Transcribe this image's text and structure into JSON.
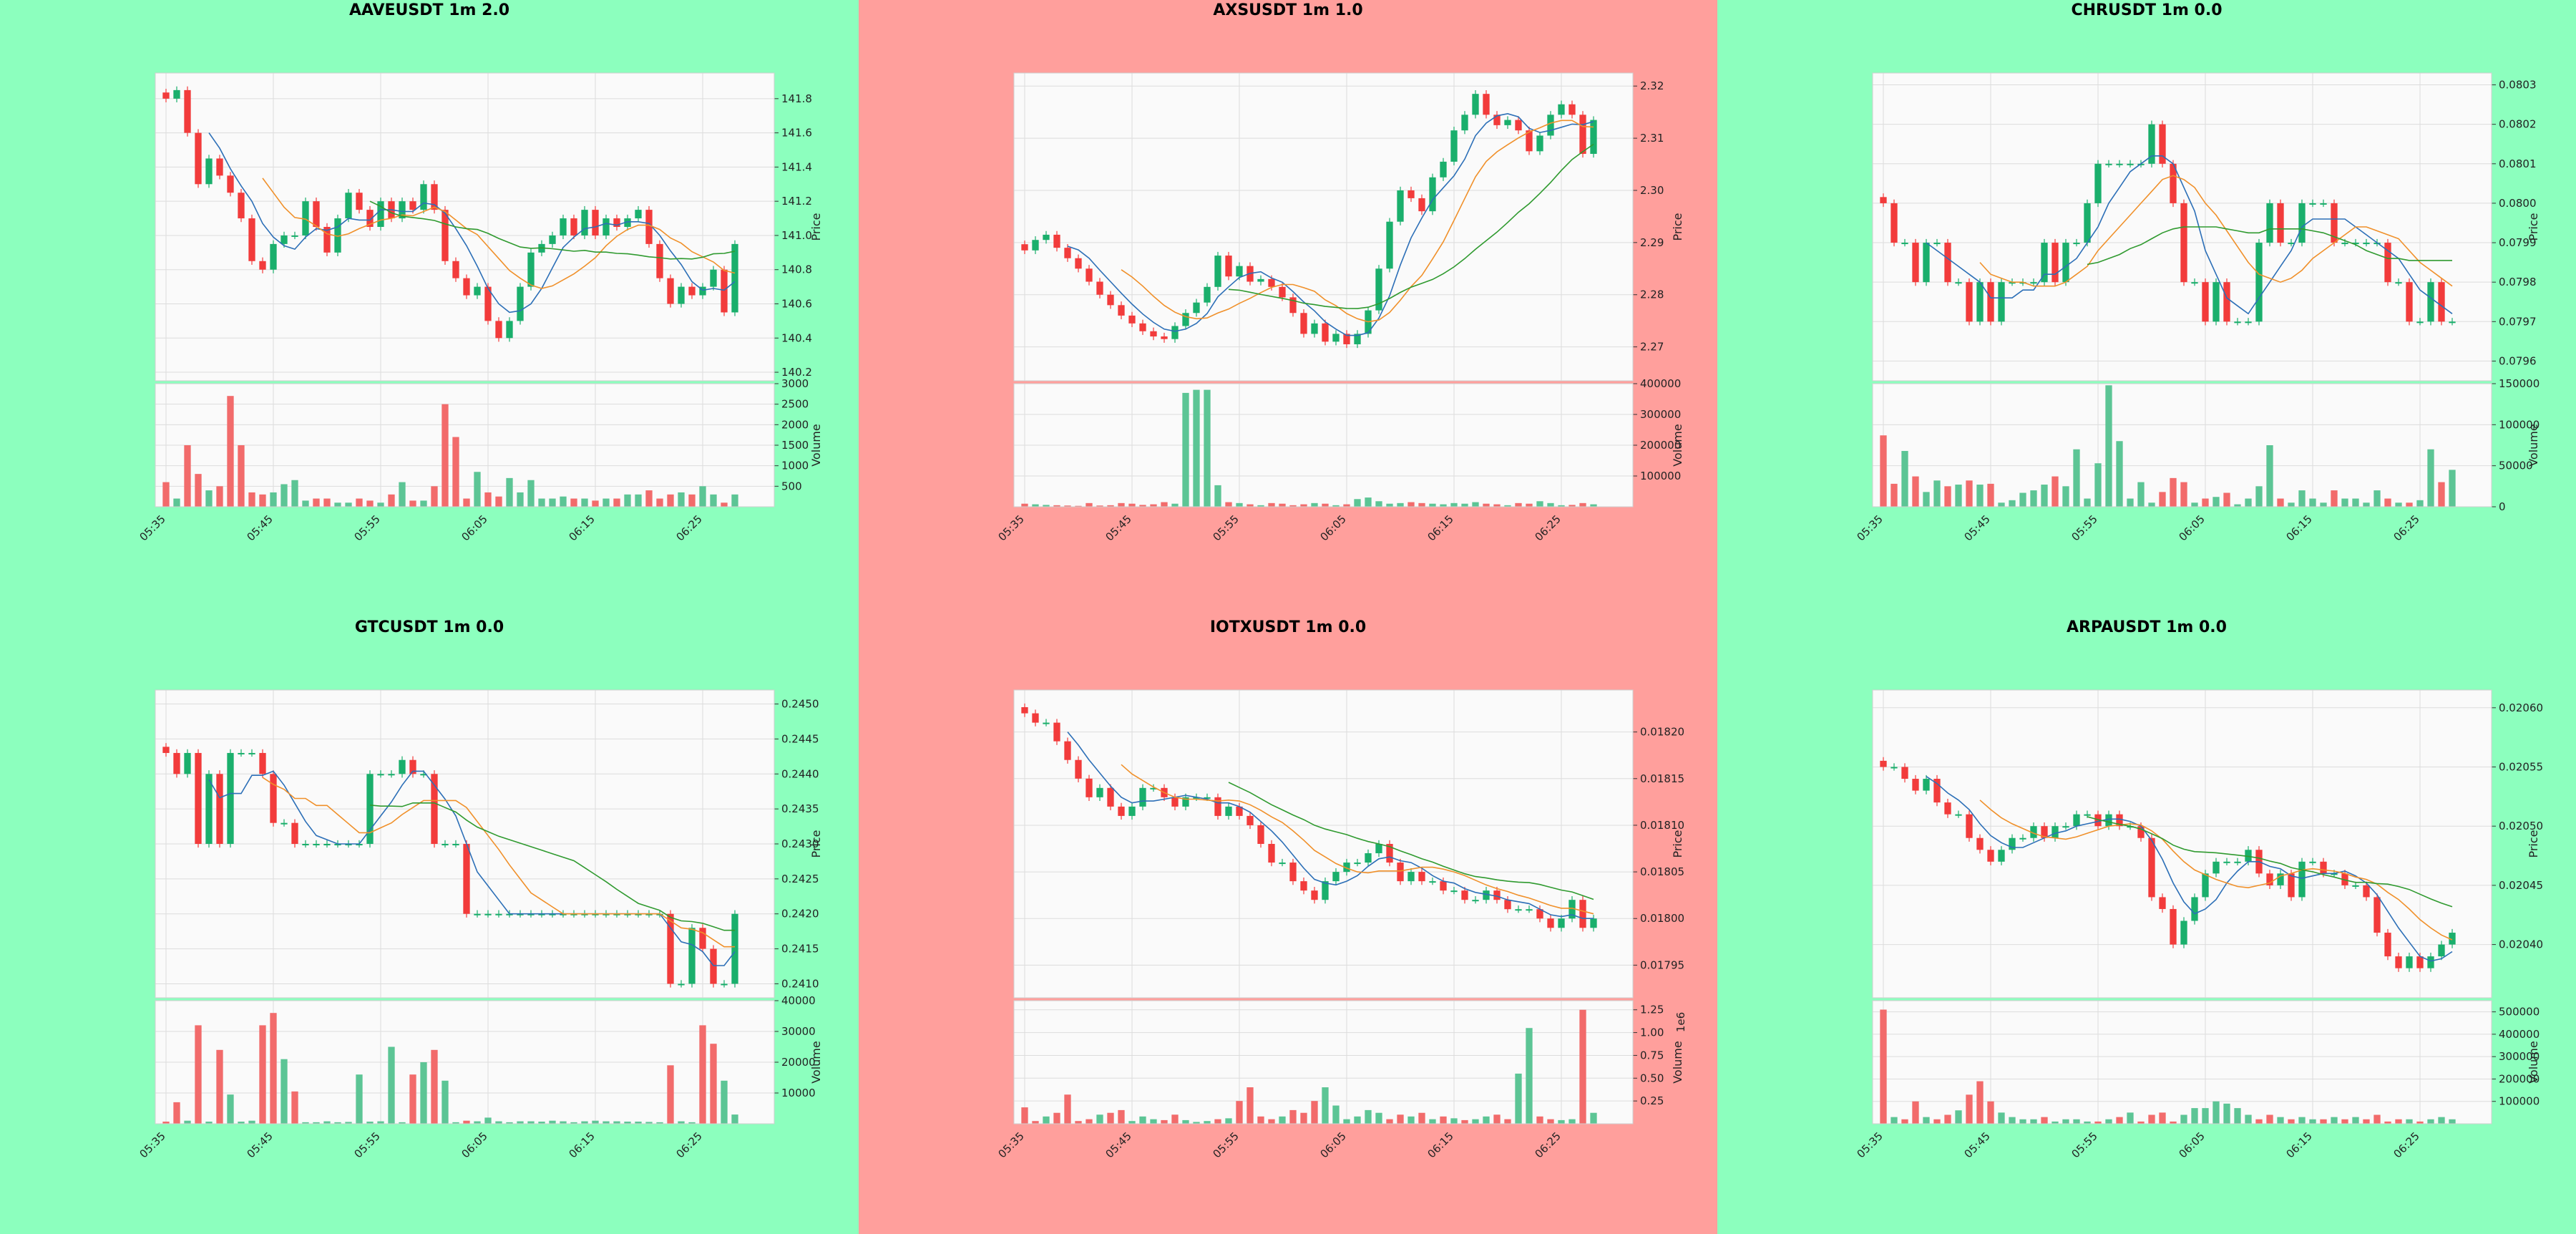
{
  "colors": {
    "panel_up": "#8cffbe",
    "panel_down": "#ff9f9c",
    "candle_up": "#1aaf6c",
    "candle_down": "#f23b3b",
    "vol_up": "#5cc595",
    "vol_down": "#f26b6b",
    "ma1": "#2c6fb7",
    "ma2": "#f0902a",
    "ma3": "#2f9a2f",
    "plot_bg": "#fafafa"
  },
  "times": [
    "05:35",
    "05:45",
    "05:55",
    "06:05",
    "06:15",
    "06:25"
  ],
  "ylabel_price": "Price",
  "ylabel_volume": "Volume",
  "charts": [
    {
      "title": "AAVEUSDT 1m 2.0",
      "status": "up",
      "chart_data": {
        "type": "candlestick",
        "x_ticks": [
          "05:35",
          "05:45",
          "05:55",
          "06:05",
          "06:15",
          "06:25"
        ],
        "price_ticks": [
          "140.2",
          "140.4",
          "140.6",
          "140.8",
          "141.0",
          "141.2",
          "141.4",
          "141.6",
          "141.8"
        ],
        "price_ylim": [
          140.15,
          141.95
        ],
        "volume_ticks": [
          "500",
          "1000",
          "1500",
          "2000",
          "2500",
          "3000"
        ],
        "volume_ylim": [
          0,
          3000
        ],
        "close": [
          141.8,
          141.85,
          141.6,
          141.3,
          141.45,
          141.35,
          141.25,
          141.1,
          140.85,
          140.8,
          140.95,
          141.0,
          141.0,
          141.2,
          141.05,
          140.9,
          141.1,
          141.25,
          141.15,
          141.05,
          141.2,
          141.1,
          141.2,
          141.15,
          141.3,
          141.15,
          140.85,
          140.75,
          140.65,
          140.7,
          140.5,
          140.4,
          140.5,
          140.7,
          140.9,
          140.95,
          141.0,
          141.1,
          141.0,
          141.15,
          141.0,
          141.1,
          141.05,
          141.1,
          141.15,
          140.95,
          140.75,
          140.6,
          140.7,
          140.65,
          140.7,
          140.8,
          140.55,
          140.95
        ],
        "volume": [
          600,
          200,
          1500,
          800,
          400,
          500,
          2700,
          1500,
          350,
          300,
          350,
          550,
          650,
          150,
          200,
          200,
          100,
          100,
          200,
          150,
          100,
          300,
          600,
          150,
          150,
          500,
          2500,
          1700,
          200,
          850,
          350,
          250,
          700,
          350,
          650,
          200,
          200,
          250,
          200,
          200,
          150,
          200,
          200,
          300,
          300,
          400,
          200,
          300,
          350,
          300,
          500,
          300,
          100,
          300
        ]
      }
    },
    {
      "title": "AXSUSDT 1m 1.0",
      "status": "down",
      "chart_data": {
        "type": "candlestick",
        "x_ticks": [
          "05:35",
          "05:45",
          "05:55",
          "06:05",
          "06:15",
          "06:25"
        ],
        "price_ticks": [
          "2.27",
          "2.28",
          "2.29",
          "2.30",
          "2.31",
          "2.32"
        ],
        "price_ylim": [
          2.2635,
          2.3225
        ],
        "volume_ticks": [
          "100000",
          "200000",
          "300000",
          "400000"
        ],
        "volume_ylim": [
          0,
          400000
        ],
        "close": [
          2.2885,
          2.2905,
          2.2915,
          2.289,
          2.287,
          2.285,
          2.2825,
          2.28,
          2.278,
          2.276,
          2.2745,
          2.273,
          2.272,
          2.2715,
          2.274,
          2.2765,
          2.2785,
          2.2815,
          2.2875,
          2.2835,
          2.2855,
          2.2825,
          2.283,
          2.2815,
          2.2795,
          2.2765,
          2.2725,
          2.2745,
          2.271,
          2.2725,
          2.2705,
          2.2725,
          2.277,
          2.285,
          2.294,
          2.3,
          2.2985,
          2.296,
          2.3025,
          2.3055,
          2.3115,
          2.3145,
          2.3185,
          2.3145,
          2.3125,
          2.3135,
          2.3115,
          2.3075,
          2.3105,
          2.3145,
          2.3165,
          2.3145,
          2.307,
          2.3135
        ],
        "volume": [
          10000,
          8000,
          6000,
          5000,
          4000,
          3000,
          12000,
          4000,
          5000,
          12000,
          10000,
          6000,
          8000,
          15000,
          10000,
          370000,
          380000,
          380000,
          70000,
          15000,
          12000,
          8000,
          5000,
          12000,
          10000,
          5000,
          8000,
          12000,
          10000,
          5000,
          8000,
          25000,
          30000,
          18000,
          10000,
          12000,
          15000,
          12000,
          10000,
          8000,
          12000,
          10000,
          15000,
          10000,
          8000,
          5000,
          12000,
          10000,
          18000,
          12000,
          5000,
          6000,
          12000,
          8000
        ]
      }
    },
    {
      "title": "CHRUSDT 1m 0.0",
      "status": "up",
      "chart_data": {
        "type": "candlestick",
        "x_ticks": [
          "05:35",
          "05:45",
          "05:55",
          "06:05",
          "06:15",
          "06:25"
        ],
        "price_ticks": [
          "0.0796",
          "0.0797",
          "0.0798",
          "0.0799",
          "0.0800",
          "0.0801",
          "0.0802",
          "0.0803"
        ],
        "price_ylim": [
          0.07955,
          0.08033
        ],
        "volume_ticks": [
          "0",
          "50000",
          "100000",
          "150000"
        ],
        "volume_ylim": [
          0,
          150000
        ],
        "close": [
          0.08,
          0.0799,
          0.0799,
          0.0798,
          0.0799,
          0.0799,
          0.0798,
          0.0798,
          0.0797,
          0.0798,
          0.0797,
          0.0798,
          0.0798,
          0.0798,
          0.0798,
          0.0799,
          0.0798,
          0.0799,
          0.0799,
          0.08,
          0.0801,
          0.0801,
          0.0801,
          0.0801,
          0.0801,
          0.0802,
          0.0801,
          0.08,
          0.0798,
          0.0798,
          0.0797,
          0.0798,
          0.0797,
          0.0797,
          0.0797,
          0.0799,
          0.08,
          0.0799,
          0.0799,
          0.08,
          0.08,
          0.08,
          0.0799,
          0.0799,
          0.0799,
          0.0799,
          0.0799,
          0.0798,
          0.0798,
          0.0797,
          0.0797,
          0.0798,
          0.0797,
          0.0797
        ],
        "volume": [
          87000,
          28000,
          68000,
          37000,
          18000,
          32000,
          25000,
          27000,
          32000,
          27000,
          28000,
          5000,
          8000,
          17000,
          20000,
          27000,
          37000,
          25000,
          70000,
          10000,
          53000,
          148000,
          80000,
          10000,
          30000,
          5000,
          18000,
          35000,
          30000,
          5000,
          10000,
          12000,
          17000,
          3000,
          10000,
          25000,
          75000,
          10000,
          5000,
          20000,
          10000,
          5000,
          20000,
          10000,
          10000,
          5000,
          20000,
          10000,
          5000,
          5000,
          8000,
          70000,
          30000,
          45000
        ]
      }
    },
    {
      "title": "GTCUSDT 1m 0.0",
      "status": "up",
      "chart_data": {
        "type": "candlestick",
        "x_ticks": [
          "05:35",
          "05:45",
          "05:55",
          "06:05",
          "06:15",
          "06:25"
        ],
        "price_ticks": [
          "0.2410",
          "0.2415",
          "0.2420",
          "0.2425",
          "0.2430",
          "0.2435",
          "0.2440",
          "0.2445",
          "0.2450"
        ],
        "price_ylim": [
          0.2408,
          0.2452
        ],
        "volume_ticks": [
          "10000",
          "20000",
          "30000",
          "40000"
        ],
        "volume_ylim": [
          0,
          40000
        ],
        "close": [
          0.2443,
          0.244,
          0.2443,
          0.243,
          0.244,
          0.243,
          0.2443,
          0.2443,
          0.2443,
          0.244,
          0.2433,
          0.2433,
          0.243,
          0.243,
          0.243,
          0.243,
          0.243,
          0.243,
          0.243,
          0.244,
          0.244,
          0.244,
          0.2442,
          0.244,
          0.244,
          0.243,
          0.243,
          0.243,
          0.242,
          0.242,
          0.242,
          0.242,
          0.242,
          0.242,
          0.242,
          0.242,
          0.242,
          0.242,
          0.242,
          0.242,
          0.242,
          0.242,
          0.242,
          0.242,
          0.242,
          0.242,
          0.242,
          0.241,
          0.241,
          0.2418,
          0.2415,
          0.241,
          0.241,
          0.242
        ],
        "volume": [
          700,
          7000,
          1000,
          32000,
          700,
          24000,
          9500,
          700,
          1000,
          32000,
          36000,
          21000,
          10500,
          500,
          500,
          800,
          500,
          600,
          16000,
          700,
          800,
          25000,
          500,
          16000,
          20000,
          24000,
          14000,
          500,
          1000,
          800,
          2000,
          800,
          500,
          800,
          800,
          700,
          1000,
          800,
          500,
          800,
          1000,
          800,
          800,
          700,
          700,
          600,
          500,
          19000,
          800,
          500,
          32000,
          26000,
          14000,
          3000
        ]
      }
    },
    {
      "title": "IOTXUSDT 1m 0.0",
      "status": "down",
      "chart_data": {
        "type": "candlestick",
        "x_ticks": [
          "05:35",
          "05:45",
          "05:55",
          "06:05",
          "06:15",
          "06:25"
        ],
        "price_ticks": [
          "0.01795",
          "0.01800",
          "0.01805",
          "0.01810",
          "0.01815",
          "0.01820"
        ],
        "price_ylim": [
          0.017915,
          0.018245
        ],
        "volume_ticks": [
          "0.25",
          "0.50",
          "0.75",
          "1.00",
          "1.25"
        ],
        "volume_ylim": [
          0,
          1.35
        ],
        "volume_multiplier": "1e6",
        "close": [
          0.01822,
          0.01821,
          0.01821,
          0.01819,
          0.01817,
          0.01815,
          0.01813,
          0.01814,
          0.01812,
          0.01811,
          0.01812,
          0.01814,
          0.01814,
          0.01813,
          0.01812,
          0.01813,
          0.01813,
          0.01813,
          0.01811,
          0.01812,
          0.01811,
          0.0181,
          0.01808,
          0.01806,
          0.01806,
          0.01804,
          0.01803,
          0.01802,
          0.01804,
          0.01805,
          0.01806,
          0.01806,
          0.01807,
          0.01808,
          0.01806,
          0.01804,
          0.01805,
          0.01804,
          0.01804,
          0.01803,
          0.01803,
          0.01802,
          0.01802,
          0.01803,
          0.01802,
          0.01801,
          0.01801,
          0.01801,
          0.018,
          0.01799,
          0.018,
          0.01802,
          0.01799,
          0.018
        ],
        "volume": [
          0.18,
          0.03,
          0.08,
          0.12,
          0.32,
          0.03,
          0.05,
          0.1,
          0.12,
          0.15,
          0.03,
          0.08,
          0.05,
          0.04,
          0.1,
          0.04,
          0.02,
          0.03,
          0.05,
          0.06,
          0.25,
          0.4,
          0.08,
          0.05,
          0.08,
          0.15,
          0.12,
          0.25,
          0.4,
          0.2,
          0.05,
          0.08,
          0.15,
          0.12,
          0.05,
          0.1,
          0.08,
          0.12,
          0.05,
          0.08,
          0.06,
          0.04,
          0.05,
          0.08,
          0.1,
          0.05,
          0.55,
          1.05,
          0.08,
          0.05,
          0.04,
          0.05,
          1.25,
          0.12
        ]
      }
    },
    {
      "title": "ARPAUSDT 1m 0.0",
      "status": "up",
      "chart_data": {
        "type": "candlestick",
        "x_ticks": [
          "05:35",
          "05:45",
          "05:55",
          "06:05",
          "06:15",
          "06:25"
        ],
        "price_ticks": [
          "0.02040",
          "0.02045",
          "0.02050",
          "0.02055",
          "0.02060"
        ],
        "price_ylim": [
          0.020355,
          0.020615
        ],
        "volume_ticks": [
          "100000",
          "200000",
          "300000",
          "400000",
          "500000"
        ],
        "volume_ylim": [
          0,
          550000
        ],
        "close": [
          0.02055,
          0.02055,
          0.02054,
          0.02053,
          0.02054,
          0.02052,
          0.02051,
          0.02051,
          0.02049,
          0.02048,
          0.02047,
          0.02048,
          0.02049,
          0.02049,
          0.0205,
          0.02049,
          0.0205,
          0.0205,
          0.02051,
          0.02051,
          0.0205,
          0.02051,
          0.0205,
          0.0205,
          0.02049,
          0.02044,
          0.02043,
          0.0204,
          0.02042,
          0.02044,
          0.02046,
          0.02047,
          0.02047,
          0.02047,
          0.02048,
          0.02046,
          0.02045,
          0.02046,
          0.02044,
          0.02047,
          0.02047,
          0.02046,
          0.02046,
          0.02045,
          0.02045,
          0.02044,
          0.02041,
          0.02039,
          0.02038,
          0.02039,
          0.02038,
          0.02039,
          0.0204,
          0.02041
        ],
        "volume": [
          510000,
          30000,
          20000,
          100000,
          30000,
          20000,
          40000,
          60000,
          130000,
          190000,
          100000,
          50000,
          30000,
          20000,
          20000,
          30000,
          10000,
          20000,
          20000,
          10000,
          10000,
          20000,
          30000,
          50000,
          10000,
          40000,
          50000,
          10000,
          40000,
          70000,
          70000,
          100000,
          90000,
          70000,
          40000,
          20000,
          40000,
          30000,
          20000,
          30000,
          20000,
          20000,
          30000,
          20000,
          30000,
          20000,
          40000,
          10000,
          20000,
          20000,
          10000,
          20000,
          30000,
          20000
        ]
      }
    }
  ]
}
